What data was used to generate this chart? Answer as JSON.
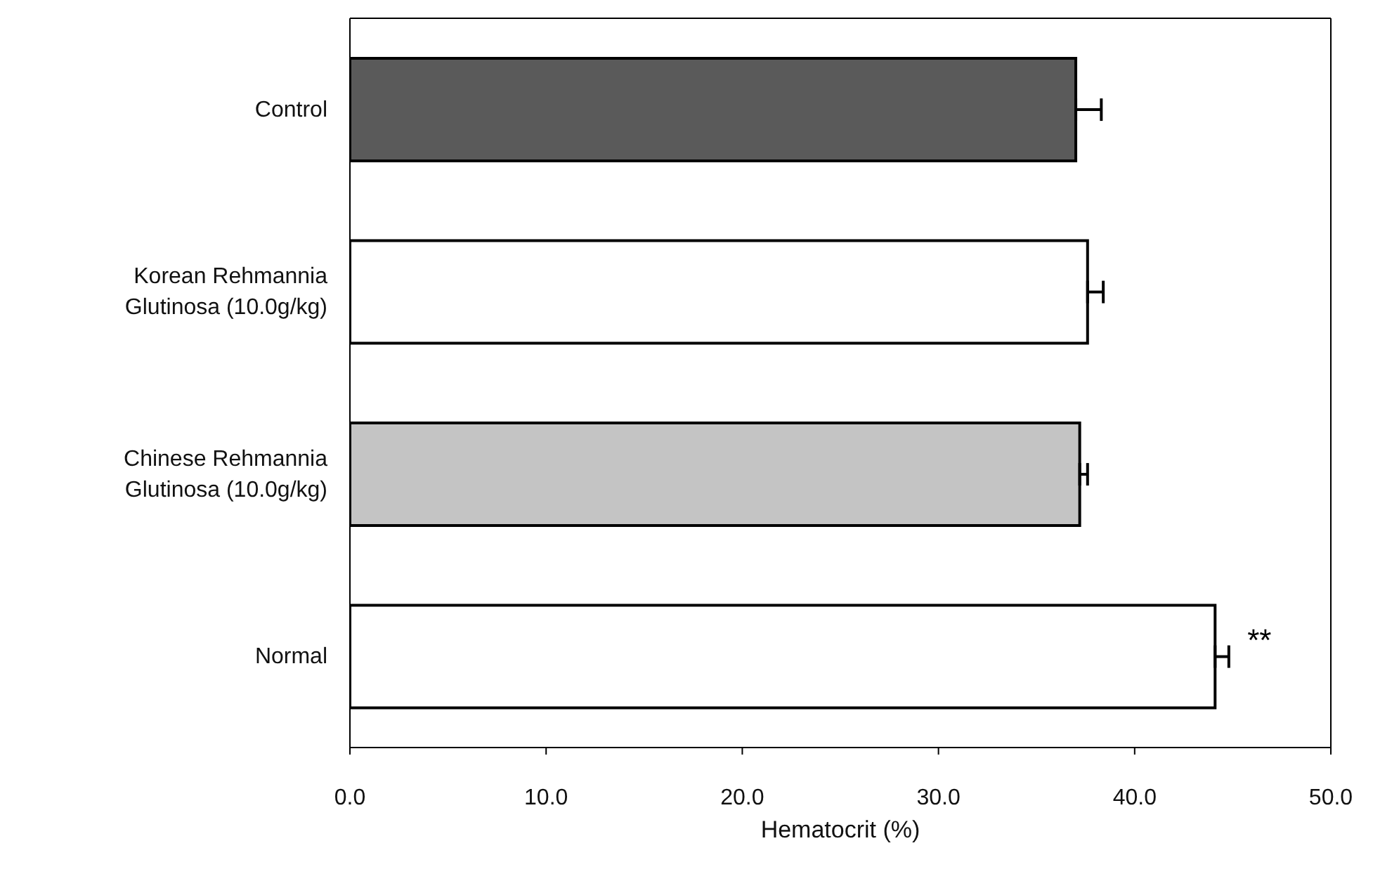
{
  "chart_data": {
    "type": "bar",
    "orientation": "horizontal",
    "xlabel": "Hematocrit (%)",
    "categories": [
      "Control",
      "Korean Rehmannia Glutinosa (10.0g/kg)",
      "Chinese Rehmannia Glutinosa (10.0g/kg)",
      "Normal"
    ],
    "values": [
      37.0,
      37.6,
      37.2,
      44.1
    ],
    "errors": [
      [
        37.0,
        38.3
      ],
      [
        37.6,
        38.4
      ],
      [
        37.2,
        37.6
      ],
      [
        44.1,
        44.8
      ]
    ],
    "colors": [
      "#5a5a5a",
      "#ffffff",
      "#c4c4c4",
      "#ffffff"
    ],
    "xlim": [
      0,
      50
    ],
    "xticks": [
      {
        "value": 0,
        "label": "0.0"
      },
      {
        "value": 10,
        "label": "10.0"
      },
      {
        "value": 20,
        "label": "20.0"
      },
      {
        "value": 30,
        "label": "30.0"
      },
      {
        "value": 40,
        "label": "40.0"
      },
      {
        "value": 50,
        "label": "50.0"
      }
    ],
    "annotations": [
      {
        "text": "**",
        "x": 44.1,
        "y": "Normal"
      }
    ],
    "grid": false,
    "legend": false
  }
}
